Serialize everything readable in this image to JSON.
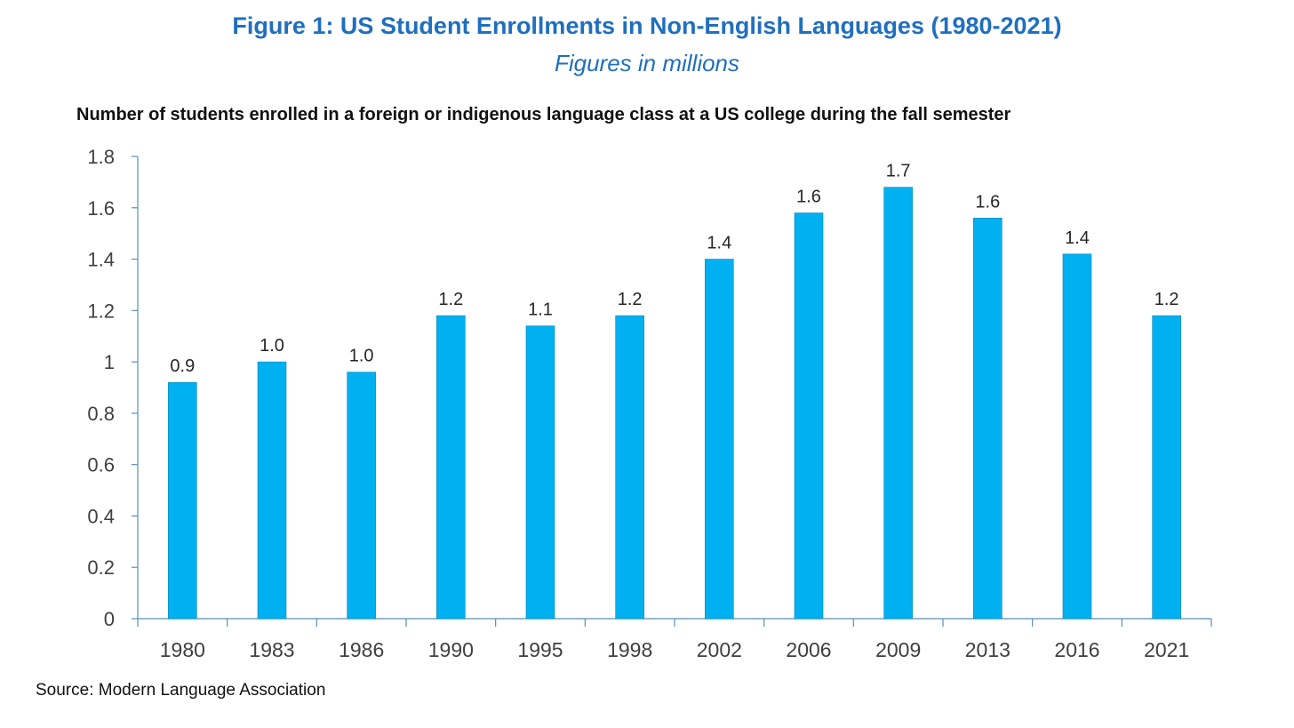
{
  "title": "Figure 1: US Student Enrollments in Non-English Languages (1980-2021)",
  "subtitle": "Figures in millions",
  "source": "Source: Modern Language Association",
  "colors": {
    "title": "#1f6fbf",
    "bar": "#00b0f0",
    "axis": "#5b8fb5"
  },
  "chart_data": {
    "type": "bar",
    "title": "Number of students enrolled in a foreign or indigenous language class at a US college during the fall semester",
    "categories": [
      "1980",
      "1983",
      "1986",
      "1990",
      "1995",
      "1998",
      "2002",
      "2006",
      "2009",
      "2013",
      "2016",
      "2021"
    ],
    "values": [
      0.92,
      1.0,
      0.96,
      1.18,
      1.14,
      1.18,
      1.4,
      1.58,
      1.68,
      1.56,
      1.42,
      1.18
    ],
    "data_labels": [
      "0.9",
      "1.0",
      "1.0",
      "1.2",
      "1.1",
      "1.2",
      "1.4",
      "1.6",
      "1.7",
      "1.6",
      "1.4",
      "1.2"
    ],
    "yticks": [
      "0",
      "0.2",
      "0.4",
      "0.6",
      "0.8",
      "1",
      "1.2",
      "1.4",
      "1.6",
      "1.8"
    ],
    "ylim": [
      0,
      1.8
    ],
    "xlabel": "",
    "ylabel": "",
    "grid": false,
    "legend": "none"
  }
}
